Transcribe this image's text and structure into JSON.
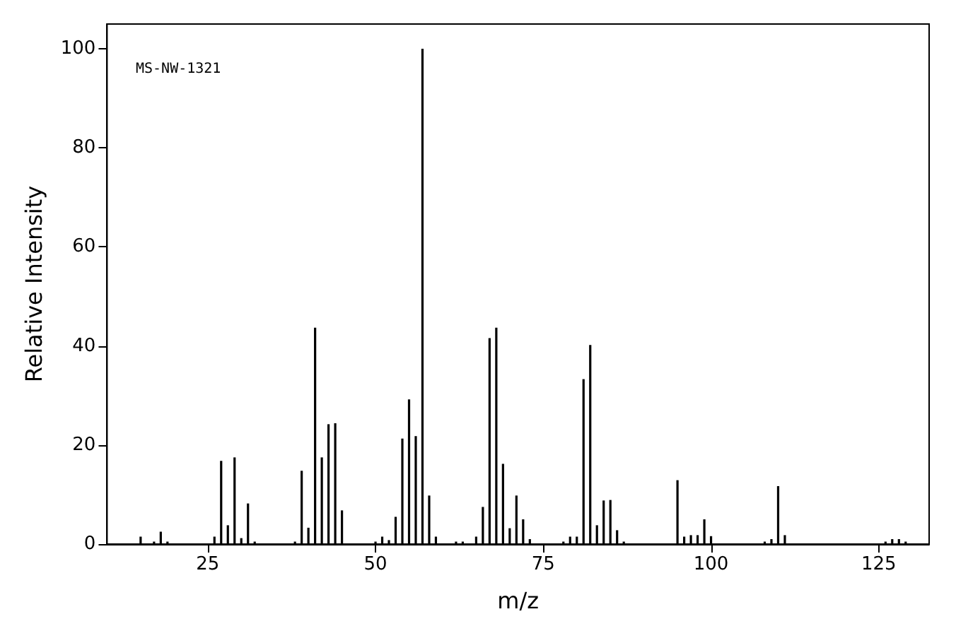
{
  "chart_data": {
    "type": "bar",
    "xlabel": "m/z",
    "ylabel": "Relative Intensity",
    "annotations": [
      "MS-NW-1321"
    ],
    "x": [
      15,
      17,
      18,
      19,
      26,
      27,
      28,
      29,
      30,
      31,
      32,
      38,
      39,
      40,
      41,
      42,
      43,
      44,
      45,
      50,
      51,
      52,
      53,
      54,
      55,
      56,
      57,
      58,
      59,
      62,
      63,
      65,
      66,
      67,
      68,
      69,
      70,
      71,
      72,
      73,
      78,
      79,
      80,
      81,
      82,
      83,
      84,
      85,
      86,
      87,
      95,
      96,
      97,
      98,
      99,
      100,
      108,
      109,
      110,
      111,
      126,
      127,
      128,
      129
    ],
    "series": [
      {
        "color": "#000000",
        "values": [
          1.5,
          0.5,
          2.5,
          0.5,
          1.5,
          16.8,
          3.8,
          17.5,
          1.2,
          8.2,
          0.5,
          0.5,
          14.8,
          3.3,
          43.7,
          17.5,
          24.2,
          24.4,
          6.8,
          0.5,
          1.5,
          0.8,
          5.5,
          21.3,
          29.2,
          21.8,
          100,
          9.8,
          1.5,
          0.5,
          0.5,
          1.5,
          7.5,
          41.6,
          43.7,
          16.2,
          3.2,
          9.8,
          5,
          1,
          0.5,
          1.5,
          1.5,
          33.3,
          40.2,
          3.8,
          8.8,
          8.9,
          2.8,
          0.5,
          12.9,
          1.5,
          1.8,
          1.8,
          5,
          1.6,
          0.5,
          1,
          11.7,
          1.8,
          0.5,
          1,
          1,
          0.5
        ]
      }
    ],
    "xlim": [
      10,
      132.5
    ],
    "xticks": [
      25,
      50,
      75,
      100,
      125
    ],
    "ylim": [
      0,
      105
    ],
    "yticks": [
      0,
      20,
      40,
      60,
      80,
      100
    ],
    "grid": false
  }
}
